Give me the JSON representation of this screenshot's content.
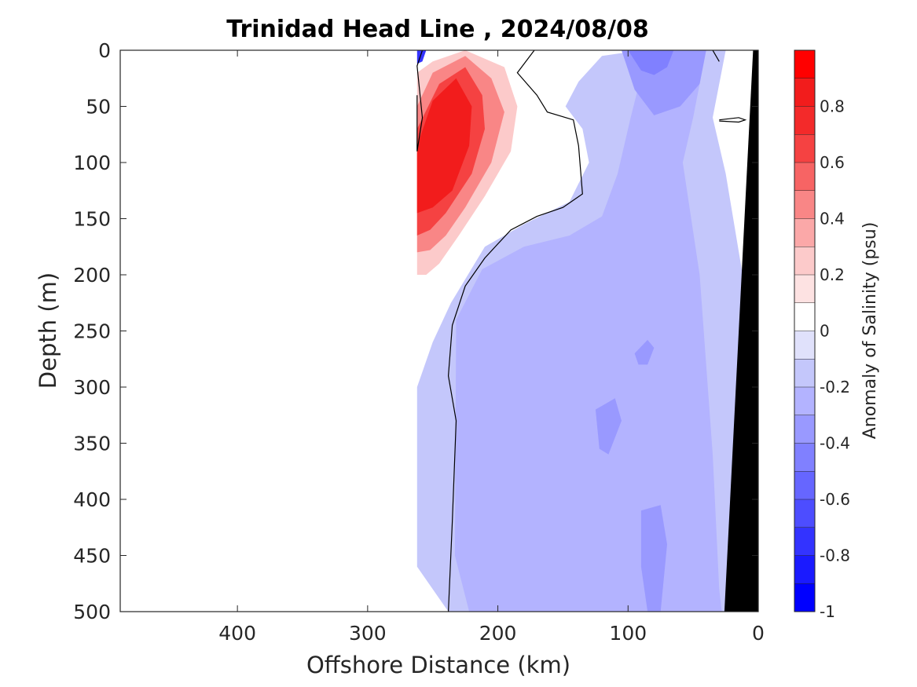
{
  "chart_data": {
    "type": "heatmap",
    "subtype": "filled-contour-section",
    "title": "Trinidad Head Line , 2024/08/08",
    "xlabel": "Offshore Distance (km)",
    "ylabel": "Depth (m)",
    "xlim": [
      490,
      0
    ],
    "ylim": [
      0,
      500
    ],
    "x_reversed": true,
    "y_reversed": true,
    "xticks": [
      400,
      300,
      200,
      100,
      0
    ],
    "yticks": [
      0,
      50,
      100,
      150,
      200,
      250,
      300,
      350,
      400,
      450,
      500
    ],
    "colorbar": {
      "label": "Anomaly of Salinity (psu)",
      "range": [
        -1,
        1
      ],
      "ticks": [
        0.8,
        0.6,
        0.4,
        0.2,
        0,
        -0.2,
        -0.4,
        -0.6,
        -0.8,
        -1
      ],
      "levels": [
        -1,
        -0.9,
        -0.8,
        -0.7,
        -0.6,
        -0.5,
        -0.4,
        -0.3,
        -0.2,
        -0.1,
        0,
        0.1,
        0.2,
        0.3,
        0.4,
        0.5,
        0.6,
        0.7,
        0.8,
        0.9,
        1
      ],
      "colors": [
        "#0000ff",
        "#1a1aff",
        "#3333ff",
        "#4d4dff",
        "#6666ff",
        "#8080ff",
        "#9999ff",
        "#b3b3ff",
        "#c4c7fb",
        "#e0e1fb",
        "#ffffff",
        "#fde2e2",
        "#fccaca",
        "#fba8a8",
        "#f98686",
        "#f76464",
        "#f54242",
        "#f32a2a",
        "#f21c1c",
        "#ff0000"
      ]
    },
    "contour_zero_line": true,
    "bathymetry_color": "#000000",
    "regions": [
      {
        "name": "weak-negative",
        "value": -0.15,
        "polygon": [
          [
            238,
            500
          ],
          [
            262,
            460
          ],
          [
            262,
            300
          ],
          [
            250,
            260
          ],
          [
            236,
            225
          ],
          [
            210,
            175
          ],
          [
            180,
            155
          ],
          [
            145,
            135
          ],
          [
            130,
            100
          ],
          [
            135,
            70
          ],
          [
            148,
            50
          ],
          [
            138,
            28
          ],
          [
            120,
            5
          ],
          [
            90,
            0
          ],
          [
            25,
            0
          ],
          [
            35,
            60
          ],
          [
            25,
            110
          ],
          [
            12,
            200
          ],
          [
            12,
            500
          ]
        ]
      },
      {
        "name": "moderate-negative",
        "value": -0.25,
        "polygon": [
          [
            222,
            500
          ],
          [
            233,
            450
          ],
          [
            232,
            240
          ],
          [
            212,
            195
          ],
          [
            180,
            175
          ],
          [
            145,
            165
          ],
          [
            120,
            148
          ],
          [
            108,
            110
          ],
          [
            98,
            60
          ],
          [
            85,
            0
          ],
          [
            40,
            0
          ],
          [
            50,
            60
          ],
          [
            58,
            100
          ],
          [
            45,
            200
          ],
          [
            35,
            360
          ],
          [
            30,
            480
          ],
          [
            28,
            500
          ]
        ]
      },
      {
        "name": "negative-patch-upper",
        "value": -0.35,
        "polygon": [
          [
            130,
            0
          ],
          [
            105,
            0
          ],
          [
            95,
            35
          ],
          [
            80,
            58
          ],
          [
            60,
            50
          ],
          [
            45,
            30
          ],
          [
            40,
            0
          ]
        ]
      },
      {
        "name": "negative-core-upper",
        "value": -0.45,
        "polygon": [
          [
            100,
            0
          ],
          [
            65,
            0
          ],
          [
            70,
            15
          ],
          [
            80,
            22
          ],
          [
            90,
            18
          ]
        ]
      },
      {
        "name": "negative-patch-300m",
        "value": -0.32,
        "polygon": [
          [
            125,
            320
          ],
          [
            110,
            310
          ],
          [
            105,
            330
          ],
          [
            115,
            360
          ],
          [
            122,
            355
          ]
        ]
      },
      {
        "name": "negative-patch-270m",
        "value": -0.32,
        "polygon": [
          [
            95,
            270
          ],
          [
            85,
            258
          ],
          [
            80,
            265
          ],
          [
            85,
            280
          ],
          [
            92,
            280
          ]
        ]
      },
      {
        "name": "negative-patch-430m",
        "value": -0.32,
        "polygon": [
          [
            90,
            410
          ],
          [
            75,
            405
          ],
          [
            70,
            440
          ],
          [
            75,
            500
          ],
          [
            85,
            500
          ],
          [
            90,
            460
          ]
        ]
      },
      {
        "name": "positive-level-1",
        "value": 0.05,
        "polygon": [
          [
            262,
            218
          ],
          [
            262,
            0
          ],
          [
            245,
            0
          ],
          [
            225,
            0
          ],
          [
            185,
            0
          ],
          [
            185,
            40
          ],
          [
            160,
            60
          ],
          [
            165,
            100
          ],
          [
            195,
            130
          ],
          [
            215,
            160
          ],
          [
            235,
            190
          ],
          [
            248,
            205
          ]
        ]
      },
      {
        "name": "positive-level-2",
        "value": 0.25,
        "polygon": [
          [
            262,
            200
          ],
          [
            262,
            20
          ],
          [
            250,
            10
          ],
          [
            225,
            0
          ],
          [
            195,
            15
          ],
          [
            185,
            50
          ],
          [
            190,
            90
          ],
          [
            210,
            130
          ],
          [
            230,
            165
          ],
          [
            245,
            190
          ],
          [
            255,
            200
          ]
        ]
      },
      {
        "name": "positive-level-4",
        "value": 0.45,
        "polygon": [
          [
            262,
            180
          ],
          [
            262,
            50
          ],
          [
            250,
            20
          ],
          [
            225,
            5
          ],
          [
            205,
            25
          ],
          [
            195,
            55
          ],
          [
            205,
            100
          ],
          [
            225,
            140
          ],
          [
            240,
            165
          ],
          [
            252,
            178
          ]
        ]
      },
      {
        "name": "positive-level-6",
        "value": 0.65,
        "polygon": [
          [
            262,
            165
          ],
          [
            262,
            70
          ],
          [
            245,
            30
          ],
          [
            225,
            15
          ],
          [
            212,
            40
          ],
          [
            210,
            70
          ],
          [
            220,
            110
          ],
          [
            240,
            145
          ],
          [
            252,
            160
          ]
        ]
      },
      {
        "name": "positive-core",
        "value": 0.9,
        "polygon": [
          [
            262,
            145
          ],
          [
            262,
            85
          ],
          [
            250,
            45
          ],
          [
            232,
            25
          ],
          [
            220,
            50
          ],
          [
            222,
            85
          ],
          [
            235,
            125
          ],
          [
            250,
            140
          ]
        ]
      },
      {
        "name": "negative-nearshore-edge",
        "value": -0.7,
        "polygon": [
          [
            262,
            0
          ],
          [
            255,
            0
          ],
          [
            258,
            10
          ],
          [
            262,
            12
          ]
        ]
      }
    ],
    "zero_contours": [
      [
        [
          238,
          500
        ],
        [
          235,
          420
        ],
        [
          232,
          330
        ],
        [
          238,
          290
        ],
        [
          235,
          245
        ],
        [
          225,
          210
        ],
        [
          210,
          185
        ],
        [
          190,
          160
        ],
        [
          170,
          148
        ],
        [
          150,
          140
        ],
        [
          135,
          128
        ],
        [
          138,
          85
        ],
        [
          142,
          62
        ],
        [
          162,
          55
        ],
        [
          170,
          40
        ],
        [
          185,
          20
        ],
        [
          172,
          0
        ]
      ],
      [
        [
          258,
          0
        ],
        [
          262,
          14
        ],
        [
          258,
          60
        ],
        [
          262,
          90
        ],
        [
          262,
          40
        ]
      ],
      [
        [
          35,
          0
        ],
        [
          30,
          10
        ]
      ],
      [
        [
          30,
          62
        ],
        [
          15,
          60
        ],
        [
          10,
          62
        ],
        [
          15,
          64
        ],
        [
          30,
          63
        ]
      ]
    ],
    "bathymetry_polygon": [
      [
        0,
        0
      ],
      [
        0,
        500
      ],
      [
        26,
        500
      ],
      [
        4,
        0
      ]
    ]
  }
}
